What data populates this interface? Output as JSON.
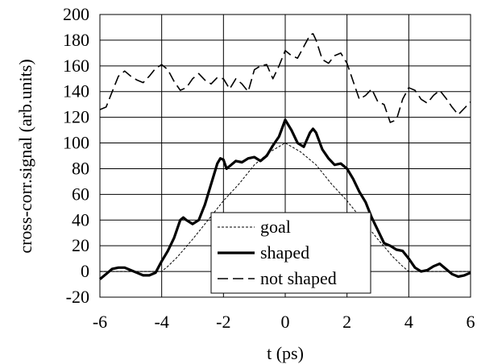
{
  "chart_data": {
    "type": "line",
    "title": "",
    "xlabel": "t (ps)",
    "ylabel": "cross-corr.signal  (arb.units)",
    "xlim": [
      -6,
      6
    ],
    "ylim": [
      -20,
      200
    ],
    "xticks": [
      -6,
      -4,
      -2,
      0,
      2,
      4,
      6
    ],
    "yticks": [
      -20,
      0,
      20,
      40,
      60,
      80,
      100,
      120,
      140,
      160,
      180,
      200
    ],
    "grid": true,
    "legend_position": "bottom-center",
    "series": [
      {
        "name": "goal",
        "style": "dotted-thin",
        "x": [
          -6,
          -5,
          -4.5,
          -4,
          -3.8,
          -3.5,
          -3,
          -2.5,
          -2,
          -1.5,
          -1,
          -0.5,
          0,
          0.5,
          1,
          1.5,
          2,
          2.5,
          3,
          3.5,
          3.8,
          4,
          4.5,
          5,
          6
        ],
        "y": [
          0,
          0,
          0,
          0,
          4,
          11,
          25,
          40,
          55,
          68,
          83,
          93,
          100,
          93,
          83,
          68,
          55,
          40,
          25,
          11,
          4,
          0,
          0,
          0,
          0
        ]
      },
      {
        "name": "shaped",
        "style": "solid-thick",
        "x": [
          -6,
          -5.8,
          -5.6,
          -5.4,
          -5.2,
          -5,
          -4.8,
          -4.6,
          -4.4,
          -4.2,
          -4,
          -3.8,
          -3.6,
          -3.4,
          -3.3,
          -3.2,
          -3,
          -2.8,
          -2.6,
          -2.4,
          -2.2,
          -2.1,
          -2,
          -1.9,
          -1.8,
          -1.6,
          -1.4,
          -1.2,
          -1,
          -0.8,
          -0.6,
          -0.4,
          -0.2,
          0,
          0.2,
          0.4,
          0.6,
          0.8,
          0.9,
          1,
          1.2,
          1.4,
          1.6,
          1.8,
          2,
          2.2,
          2.4,
          2.6,
          2.8,
          3,
          3.2,
          3.4,
          3.6,
          3.8,
          4,
          4.2,
          4.4,
          4.6,
          4.8,
          5,
          5.2,
          5.4,
          5.6,
          5.8,
          6
        ],
        "y": [
          -6,
          -2,
          2,
          3,
          3,
          1,
          -1,
          -3,
          -3,
          -1,
          8,
          16,
          26,
          40,
          42,
          40,
          37,
          40,
          52,
          68,
          84,
          88,
          87,
          80,
          82,
          86,
          85,
          88,
          89,
          86,
          90,
          98,
          105,
          118,
          110,
          100,
          97,
          108,
          111,
          108,
          95,
          88,
          83,
          84,
          80,
          72,
          62,
          54,
          42,
          32,
          22,
          20,
          17,
          16,
          10,
          3,
          0,
          1,
          4,
          6,
          2,
          -2,
          -4,
          -3,
          -1
        ]
      },
      {
        "name": "not shaped",
        "style": "dashed",
        "x": [
          -6,
          -5.8,
          -5.6,
          -5.4,
          -5.2,
          -5,
          -4.8,
          -4.6,
          -4.4,
          -4.2,
          -4,
          -3.8,
          -3.6,
          -3.4,
          -3.2,
          -3,
          -2.8,
          -2.6,
          -2.4,
          -2.2,
          -2,
          -1.8,
          -1.6,
          -1.4,
          -1.2,
          -1,
          -0.8,
          -0.6,
          -0.4,
          -0.2,
          0,
          0.2,
          0.4,
          0.6,
          0.8,
          0.9,
          1,
          1.2,
          1.4,
          1.6,
          1.8,
          2,
          2.2,
          2.4,
          2.6,
          2.8,
          3,
          3.2,
          3.4,
          3.6,
          3.8,
          4,
          4.2,
          4.4,
          4.6,
          4.8,
          5,
          5.2,
          5.4,
          5.6,
          5.8,
          6
        ],
        "y": [
          126,
          128,
          140,
          152,
          156,
          152,
          149,
          147,
          152,
          158,
          161,
          157,
          148,
          141,
          143,
          150,
          154,
          149,
          146,
          151,
          150,
          142,
          150,
          146,
          140,
          157,
          160,
          161,
          150,
          160,
          172,
          168,
          166,
          175,
          184,
          185,
          180,
          165,
          162,
          168,
          170,
          162,
          148,
          134,
          137,
          142,
          132,
          130,
          116,
          118,
          134,
          143,
          141,
          134,
          131,
          137,
          141,
          135,
          128,
          122,
          127,
          132
        ]
      }
    ]
  }
}
